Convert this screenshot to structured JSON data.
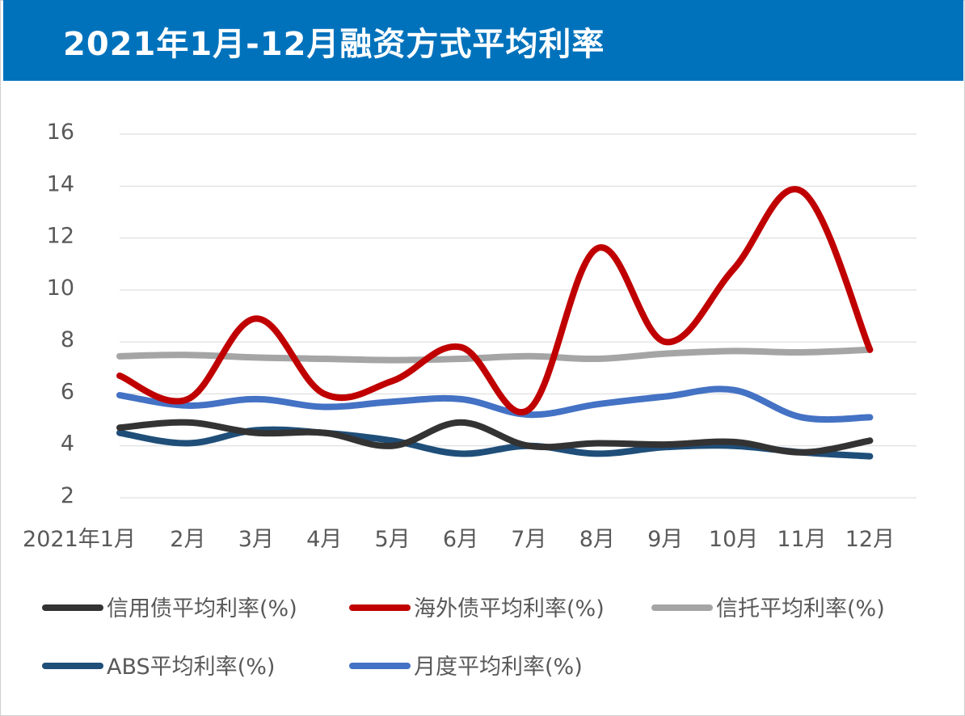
{
  "header": {
    "title": "2021年1月-12月融资方式平均利率"
  },
  "chart_data": {
    "type": "line",
    "title": "2021年1月-12月融资方式平均利率",
    "xlabel": "",
    "ylabel": "",
    "categories": [
      "2021年1月",
      "2月",
      "3月",
      "4月",
      "5月",
      "6月",
      "7月",
      "8月",
      "9月",
      "10月",
      "11月",
      "12月"
    ],
    "ylim": [
      2,
      16
    ],
    "yticks": [
      2,
      4,
      6,
      8,
      10,
      12,
      14,
      16
    ],
    "grid": true,
    "legend_position": "bottom",
    "series": [
      {
        "name": "信用债平均利率(%)",
        "color": "#333333",
        "values": [
          4.7,
          4.9,
          4.5,
          4.5,
          4.0,
          4.9,
          4.0,
          4.1,
          4.05,
          4.15,
          3.75,
          4.2
        ]
      },
      {
        "name": "海外债平均利率(%)",
        "color": "#c00000",
        "values": [
          6.7,
          5.8,
          8.9,
          6.0,
          6.5,
          7.8,
          5.4,
          11.6,
          8.0,
          10.8,
          13.8,
          7.7
        ]
      },
      {
        "name": "信托平均利率(%)",
        "color": "#a5a5a5",
        "values": [
          7.45,
          7.5,
          7.4,
          7.35,
          7.3,
          7.35,
          7.45,
          7.35,
          7.55,
          7.65,
          7.6,
          7.7
        ]
      },
      {
        "name": "ABS平均利率(%)",
        "color": "#1f4e79",
        "values": [
          4.5,
          4.1,
          4.6,
          4.5,
          4.2,
          3.7,
          4.0,
          3.7,
          3.95,
          4.0,
          3.75,
          3.6
        ]
      },
      {
        "name": "月度平均利率(%)",
        "color": "#4472c4",
        "values": [
          5.95,
          5.55,
          5.8,
          5.5,
          5.7,
          5.8,
          5.2,
          5.6,
          5.9,
          6.15,
          5.1,
          5.1
        ]
      }
    ]
  }
}
